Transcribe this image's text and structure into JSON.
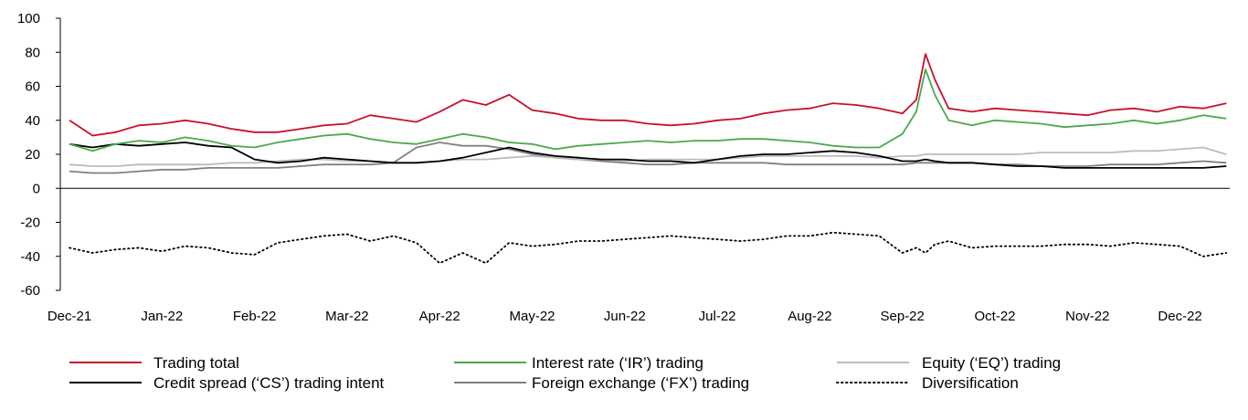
{
  "chart_data": {
    "type": "line",
    "title": "",
    "xlabel": "",
    "ylabel": "",
    "ylim": [
      -60,
      100
    ],
    "yticks": [
      100,
      80,
      60,
      40,
      20,
      0,
      -20,
      -40,
      -60
    ],
    "months": [
      "Dec-21",
      "Jan-22",
      "Feb-22",
      "Mar-22",
      "Apr-22",
      "May-22",
      "Jun-22",
      "Jul-22",
      "Aug-22",
      "Sep-22",
      "Oct-22",
      "Nov-22",
      "Dec-22"
    ],
    "x_values": [
      0,
      0.25,
      0.5,
      0.75,
      1,
      1.25,
      1.5,
      1.75,
      2,
      2.25,
      2.5,
      2.75,
      3,
      3.25,
      3.5,
      3.75,
      4,
      4.25,
      4.5,
      4.75,
      5,
      5.25,
      5.5,
      5.75,
      6,
      6.25,
      6.5,
      6.75,
      7,
      7.25,
      7.5,
      7.75,
      8,
      8.25,
      8.5,
      8.75,
      9,
      9.15,
      9.25,
      9.35,
      9.5,
      9.75,
      10,
      10.25,
      10.5,
      10.75,
      11,
      11.25,
      11.5,
      11.75,
      12,
      12.25,
      12.5
    ],
    "x_note": "months elapsed since Dec-21",
    "series": [
      {
        "name": "Trading total",
        "color": "#c8102e",
        "style": "solid",
        "values": [
          40,
          31,
          33,
          37,
          38,
          40,
          38,
          35,
          33,
          33,
          35,
          37,
          38,
          43,
          41,
          39,
          45,
          52,
          49,
          55,
          46,
          44,
          41,
          40,
          40,
          38,
          37,
          38,
          40,
          41,
          44,
          46,
          47,
          50,
          49,
          47,
          44,
          52,
          79,
          64,
          47,
          45,
          47,
          46,
          45,
          44,
          43,
          46,
          47,
          45,
          48,
          47,
          50
        ]
      },
      {
        "name": "Interest rate (‘IR’) trading",
        "color": "#4ca84c",
        "style": "solid",
        "values": [
          26,
          22,
          26,
          28,
          27,
          30,
          28,
          25,
          24,
          27,
          29,
          31,
          32,
          29,
          27,
          26,
          29,
          32,
          30,
          27,
          26,
          23,
          25,
          26,
          27,
          28,
          27,
          28,
          28,
          29,
          29,
          28,
          27,
          25,
          24,
          24,
          32,
          45,
          70,
          55,
          40,
          37,
          40,
          39,
          38,
          36,
          37,
          38,
          40,
          38,
          40,
          43,
          41
        ]
      },
      {
        "name": "Equity (‘EQ’) trading",
        "color": "#bcbcbc",
        "style": "solid",
        "values": [
          14,
          13,
          13,
          14,
          14,
          14,
          14,
          15,
          15,
          16,
          17,
          17,
          16,
          16,
          15,
          15,
          16,
          17,
          17,
          18,
          19,
          18,
          17,
          17,
          16,
          17,
          17,
          17,
          17,
          18,
          19,
          19,
          19,
          19,
          19,
          18,
          19,
          19,
          20,
          20,
          20,
          20,
          20,
          20,
          21,
          21,
          21,
          21,
          22,
          22,
          23,
          24,
          20
        ]
      },
      {
        "name": "Credit spread (‘CS’) trading intent",
        "color": "#000000",
        "style": "solid",
        "values": [
          26,
          24,
          26,
          25,
          26,
          27,
          25,
          24,
          17,
          15,
          16,
          18,
          17,
          16,
          15,
          15,
          16,
          18,
          21,
          24,
          21,
          19,
          18,
          17,
          17,
          16,
          16,
          15,
          17,
          19,
          20,
          20,
          21,
          22,
          21,
          19,
          16,
          16,
          17,
          16,
          15,
          15,
          14,
          13,
          13,
          12,
          12,
          12,
          12,
          12,
          12,
          12,
          13
        ]
      },
      {
        "name": "Foreign exchange (‘FX’) trading",
        "color": "#808080",
        "style": "solid",
        "values": [
          10,
          9,
          9,
          10,
          11,
          11,
          12,
          12,
          12,
          12,
          13,
          14,
          14,
          14,
          15,
          24,
          27,
          25,
          25,
          23,
          20,
          18,
          17,
          16,
          15,
          14,
          14,
          15,
          15,
          15,
          15,
          14,
          14,
          14,
          14,
          14,
          14,
          15,
          15,
          15,
          15,
          15,
          14,
          14,
          13,
          13,
          13,
          14,
          14,
          14,
          15,
          16,
          15
        ]
      },
      {
        "name": "Diversification",
        "color": "#000000",
        "style": "dotted",
        "values": [
          -35,
          -38,
          -36,
          -35,
          -37,
          -34,
          -35,
          -38,
          -39,
          -32,
          -30,
          -28,
          -27,
          -31,
          -28,
          -32,
          -44,
          -38,
          -44,
          -32,
          -34,
          -33,
          -31,
          -31,
          -30,
          -29,
          -28,
          -29,
          -30,
          -31,
          -30,
          -28,
          -28,
          -26,
          -27,
          -28,
          -38,
          -35,
          -38,
          -33,
          -31,
          -35,
          -34,
          -34,
          -34,
          -33,
          -33,
          -34,
          -32,
          -33,
          -34,
          -40,
          -38
        ]
      }
    ],
    "legend": [
      "Trading total",
      "Interest rate (‘IR’) trading",
      "Equity (‘EQ’) trading",
      "Credit spread (‘CS’) trading intent",
      "Foreign exchange (‘FX’) trading",
      "Diversification"
    ],
    "legend_placement": "bottom"
  }
}
